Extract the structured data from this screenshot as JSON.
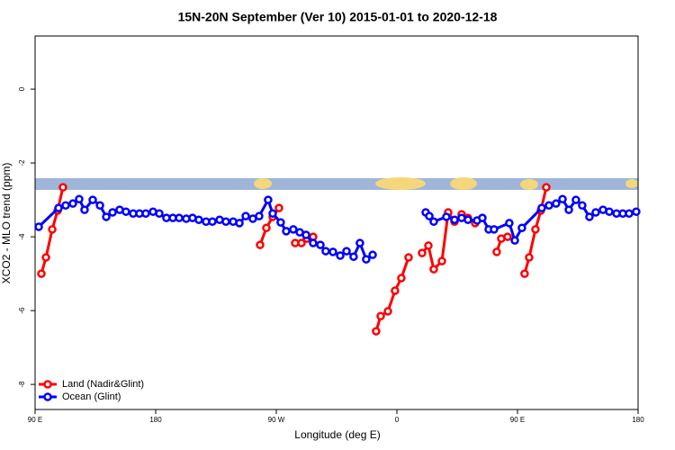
{
  "chart_data": {
    "type": "line",
    "title": "15N-20N September (Ver 10)   2015-01-01 to 2020-12-18",
    "x_label": "Longitude (deg E)",
    "y_label": "XCO2 - MLO trend (ppm)",
    "xlim": [
      90,
      540
    ],
    "xticks": [
      {
        "value": 90,
        "label": "90 E"
      },
      {
        "value": 180,
        "label": "180"
      },
      {
        "value": 270,
        "label": "90 W"
      },
      {
        "value": 360,
        "label": "0"
      },
      {
        "value": 450,
        "label": "90 E"
      },
      {
        "value": 540,
        "label": "180"
      }
    ],
    "ylim": [
      -8.68,
      1.44
    ],
    "yticks": [
      -8,
      -6,
      -4,
      -2,
      0
    ],
    "legend": "bottom-left",
    "series": [
      {
        "name": "Land (Nadir&Glint)",
        "color": "#ff0000",
        "x": [
          94.7,
          98.1,
          102.8,
          106.8,
          110.8,
          null,
          257.9,
          262.6,
          267.3,
          272,
          null,
          284.1,
          288.8,
          292.8,
          297.5,
          null,
          344.5,
          347.9,
          353.3,
          358.6,
          363.3,
          368.7,
          null,
          378.8,
          383.5,
          387.5,
          393.6,
          398.3,
          403,
          408.3,
          413,
          418.4,
          null,
          434.5,
          437.9,
          442.6,
          null,
          455.3,
          458.7,
          463.4,
          467.4,
          471.5
        ],
        "values": [
          -5.0,
          -4.56,
          -3.8,
          -3.29,
          -2.66,
          null,
          -4.22,
          -3.76,
          -3.46,
          -3.22,
          null,
          -4.17,
          -4.17,
          -4.05,
          -4.0,
          null,
          -6.56,
          -6.15,
          -6.02,
          -5.46,
          -5.12,
          -4.56,
          null,
          -4.44,
          -4.24,
          -4.88,
          -4.66,
          -3.34,
          -3.59,
          -3.39,
          -3.49,
          -3.63,
          null,
          -4.41,
          -4.05,
          -4.0,
          null,
          -5.0,
          -4.56,
          -3.8,
          -3.29,
          -2.66
        ]
      },
      {
        "name": "Ocean (Glint)",
        "color": "#0000ff",
        "x": [
          92.7,
          107.5,
          112.8,
          118.2,
          122.9,
          126.9,
          133,
          138.4,
          143.1,
          147.8,
          153.1,
          157.8,
          163.2,
          167.9,
          172.6,
          178,
          182.7,
          188,
          192.8,
          197.5,
          202.8,
          207.5,
          212.2,
          217.6,
          222.3,
          227.7,
          232.4,
          237.8,
          242.5,
          247.2,
          252.5,
          257.2,
          263.9,
          267.3,
          273.3,
          277.4,
          282.7,
          287.5,
          292.2,
          297.5,
          302.9,
          306.9,
          312.3,
          317.7,
          322.4,
          327.7,
          332.4,
          337.1,
          341.9,
          null,
          381.5,
          384.2,
          387.5,
          396.9,
          403,
          408.3,
          413,
          419.8,
          423.8,
          428.5,
          432.5,
          443.9,
          448,
          453.3,
          468.1,
          473.5,
          478.8,
          483.6,
          488.3,
          493.6,
          498.3,
          503.7,
          508.4,
          513.8,
          518.5,
          523.9,
          528.6,
          533.3,
          538.6
        ],
        "values": [
          -3.73,
          -3.22,
          -3.15,
          -3.1,
          -2.98,
          -3.27,
          -3.0,
          -3.15,
          -3.46,
          -3.34,
          -3.27,
          -3.32,
          -3.37,
          -3.37,
          -3.37,
          -3.32,
          -3.37,
          -3.49,
          -3.49,
          -3.49,
          -3.51,
          -3.49,
          -3.54,
          -3.59,
          -3.59,
          -3.54,
          -3.59,
          -3.59,
          -3.63,
          -3.44,
          -3.51,
          -3.44,
          -3.0,
          -3.37,
          -3.61,
          -3.85,
          -3.8,
          -3.88,
          -3.95,
          -4.17,
          -4.22,
          -4.39,
          -4.41,
          -4.51,
          -4.39,
          -4.54,
          -4.17,
          -4.61,
          -4.49,
          null,
          -3.34,
          -3.44,
          -3.59,
          -3.46,
          -3.54,
          -3.49,
          -3.54,
          -3.56,
          -3.49,
          -3.8,
          -3.8,
          -3.63,
          -4.1,
          -3.76,
          -3.22,
          -3.15,
          -3.1,
          -2.98,
          -3.27,
          -3.0,
          -3.15,
          -3.46,
          -3.34,
          -3.27,
          -3.32,
          -3.37,
          -3.37,
          -3.37,
          -3.32
        ]
      }
    ]
  }
}
